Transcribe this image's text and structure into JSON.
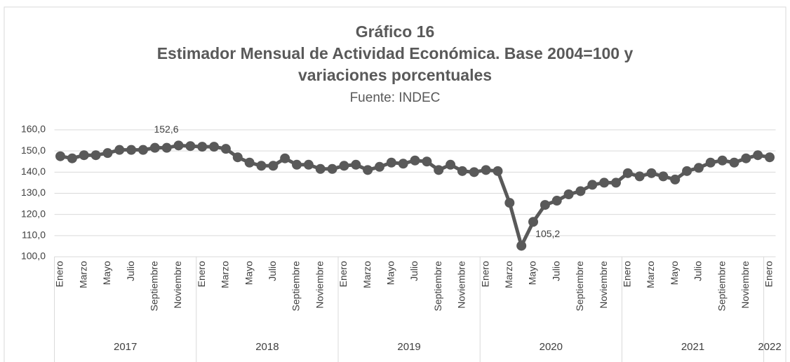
{
  "chart_data": {
    "type": "line",
    "title": [
      "Gráfico 16",
      "Estimador Mensual de Actividad Económica. Base 2004=100 y",
      "variaciones porcentuales"
    ],
    "subtitle": "Fuente: INDEC",
    "categories": [
      "Enero",
      null,
      "Marzo",
      null,
      "Mayo",
      null,
      "Julio",
      null,
      "Septiembre",
      null,
      "Noviembre",
      null,
      "Enero",
      null,
      "Marzo",
      null,
      "Mayo",
      null,
      "Julio",
      null,
      "Septiembre",
      null,
      "Noviembre",
      null,
      "Enero",
      null,
      "Marzo",
      null,
      "Mayo",
      null,
      "Julio",
      null,
      "Septiembre",
      null,
      "Noviembre",
      null,
      "Enero",
      null,
      "Marzo",
      null,
      "Mayo",
      null,
      "Julio",
      null,
      "Septiembre",
      null,
      "Noviembre",
      null,
      "Enero",
      null,
      "Marzo",
      null,
      "Mayo",
      null,
      "Julio",
      null,
      "Septiembre",
      null,
      "Noviembre",
      null,
      "Enero"
    ],
    "x_groups": [
      "2017",
      "2018",
      "2019",
      "2020",
      "2021",
      "2022"
    ],
    "values": [
      147.5,
      146.5,
      148,
      148,
      149,
      150.5,
      150.5,
      150.5,
      151.5,
      151.5,
      152.6,
      152.3,
      152,
      152,
      151,
      147,
      144.5,
      143,
      143,
      146.5,
      143.5,
      143.5,
      141.5,
      141.5,
      143,
      143.5,
      141,
      142.5,
      144.5,
      144,
      145.5,
      145,
      141,
      143.5,
      140.5,
      140,
      141,
      140.5,
      125.5,
      105.2,
      116.5,
      124.5,
      126.5,
      129.5,
      131,
      134,
      135,
      135,
      139.5,
      138,
      139.5,
      138,
      136.5,
      140.5,
      142,
      144.5,
      145.5,
      144.5,
      146.5,
      148,
      147
    ],
    "value_labels": [
      null,
      null,
      null,
      null,
      null,
      null,
      null,
      null,
      null,
      null,
      "152,6",
      null,
      null,
      null,
      null,
      null,
      null,
      null,
      null,
      null,
      null,
      null,
      null,
      null,
      null,
      null,
      null,
      null,
      null,
      null,
      null,
      null,
      null,
      null,
      null,
      null,
      null,
      null,
      null,
      "105,2",
      null,
      null,
      null,
      null,
      null,
      null,
      null,
      null,
      null,
      null,
      null,
      null,
      null,
      null,
      null,
      null,
      null,
      null,
      null,
      null,
      null
    ],
    "color": "#595959",
    "ylim": [
      100,
      160
    ],
    "yticks": [
      {
        "value": 100,
        "label": "100,0"
      },
      {
        "value": 110,
        "label": "110,0"
      },
      {
        "value": 120,
        "label": "120,0"
      },
      {
        "value": 130,
        "label": "130,0"
      },
      {
        "value": 140,
        "label": "140,0"
      },
      {
        "value": 150,
        "label": "150,0"
      },
      {
        "value": 160,
        "label": "160,0"
      }
    ],
    "grid": true
  }
}
